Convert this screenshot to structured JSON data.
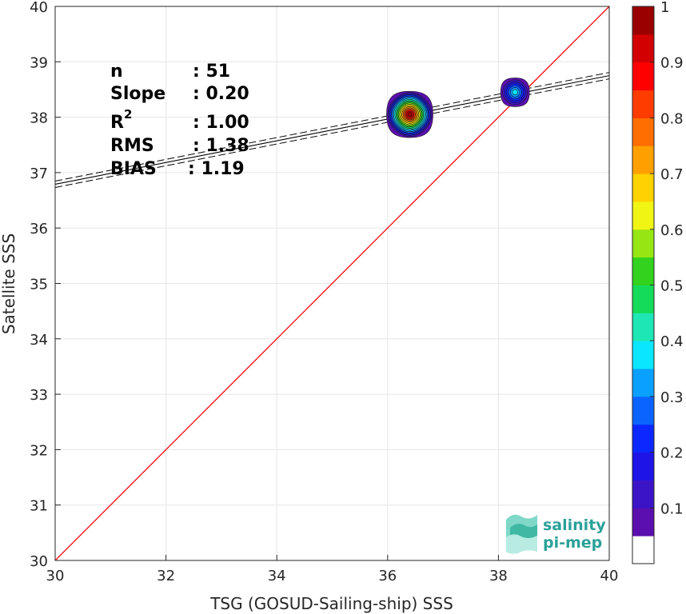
{
  "chart_data": {
    "type": "scatter",
    "title": "",
    "xlabel": "TSG (GOSUD-Sailing-ship) SSS",
    "ylabel": "Satellite SSS",
    "xlim": [
      30,
      40
    ],
    "ylim": [
      30,
      40
    ],
    "x_ticks": [
      "30",
      "32",
      "34",
      "36",
      "38",
      "40"
    ],
    "y_ticks": [
      "30",
      "31",
      "32",
      "33",
      "34",
      "35",
      "36",
      "37",
      "38",
      "39",
      "40"
    ],
    "grid": true,
    "stats": [
      {
        "label": "n",
        "value": ": 51"
      },
      {
        "label": "Slope",
        "value": ": 0.20"
      },
      {
        "label": "R",
        "sup": "2",
        "value": ": 1.00"
      },
      {
        "label": "RMS",
        "value": ": 1.38"
      },
      {
        "label": "BIAS",
        "value": ": 1.19"
      }
    ],
    "identity_line": {
      "x": [
        30,
        40
      ],
      "y": [
        30,
        40
      ],
      "color": "#ff0000"
    },
    "fit_line": {
      "slope": 0.2,
      "x": [
        30,
        40
      ],
      "y": [
        36.79,
        38.75
      ],
      "color": "#000000",
      "style": "solid with dashed confidence bounds"
    },
    "density_clusters": [
      {
        "x": 36.4,
        "y": 38.05,
        "peak": 1.0
      },
      {
        "x": 38.3,
        "y": 38.45,
        "peak": 0.35
      }
    ],
    "colorbar": {
      "range": [
        0,
        1
      ],
      "tick_labels": [
        "0.1",
        "0.2",
        "0.3",
        "0.4",
        "0.5",
        "0.6",
        "0.7",
        "0.8",
        "0.9",
        "1"
      ],
      "colors": [
        "#ffffff",
        "#5a0fae",
        "#3c14c8",
        "#1e14e6",
        "#0a28ff",
        "#0a64ff",
        "#0aa0ff",
        "#0ae6ff",
        "#1ee6b4",
        "#14dc5a",
        "#32d21e",
        "#96e614",
        "#f0f514",
        "#ffd200",
        "#ffa000",
        "#ff6e00",
        "#ff3c00",
        "#ff0000",
        "#d20000",
        "#9b0000"
      ]
    }
  },
  "logo": {
    "line1": "salinity",
    "line2": "pi-mep"
  }
}
